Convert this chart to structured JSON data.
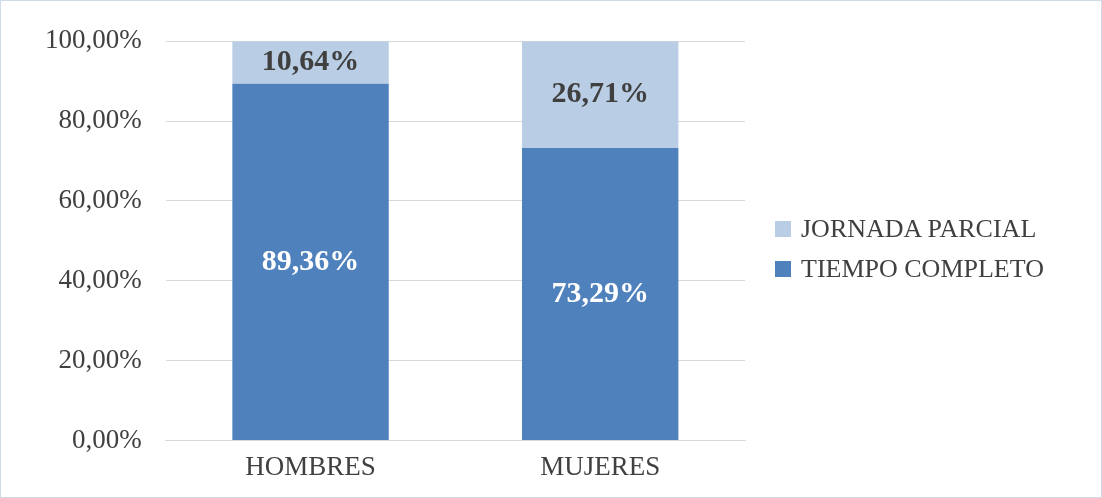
{
  "chart_data": {
    "type": "bar",
    "stacked": true,
    "categories": [
      "HOMBRES",
      "MUJERES"
    ],
    "series": [
      {
        "name": "TIEMPO COMPLETO",
        "color": "#4f81bd",
        "values": [
          89.36,
          73.29
        ],
        "value_labels": [
          "89,36%",
          "73,29%"
        ]
      },
      {
        "name": "JORNADA PARCIAL",
        "color": "#b9cde5",
        "values": [
          10.64,
          26.71
        ],
        "value_labels": [
          "10,64%",
          "26,71%"
        ]
      }
    ],
    "ylim": [
      0,
      100
    ],
    "yticks": [
      {
        "value": 0,
        "label": "0,00%"
      },
      {
        "value": 20,
        "label": "20,00%"
      },
      {
        "value": 40,
        "label": "40,00%"
      },
      {
        "value": 60,
        "label": "60,00%"
      },
      {
        "value": 80,
        "label": "80,00%"
      },
      {
        "value": 100,
        "label": "100,00%"
      }
    ],
    "grid": "y",
    "legend": "right"
  }
}
